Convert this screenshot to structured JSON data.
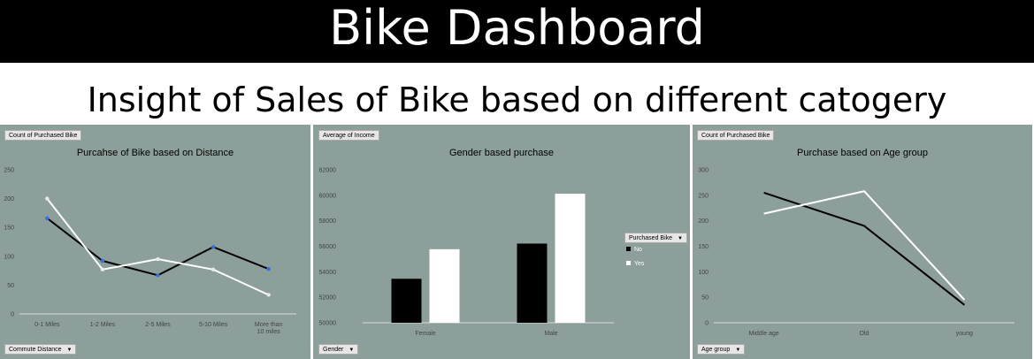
{
  "header": {
    "title": "Bike Dashboard",
    "subtitle": "Insight of Sales of Bike based on different catogery"
  },
  "colors": {
    "panel_bg": "#8c9f9b",
    "series_no": "#000000",
    "series_yes": "#ffffff",
    "marker": "#3a6fd8"
  },
  "chart_data": [
    {
      "type": "line",
      "title": "Purcahse of Bike based on Distance",
      "value_field": "Count of Purchased Bike",
      "axis_field": "Commute Distance",
      "categories": [
        "0-1 Miles",
        "1-2 Miles",
        "2-5 Miles",
        "5-10 Miles",
        "More than 10 miles"
      ],
      "ylim": [
        0,
        250
      ],
      "yticks": [
        0,
        50,
        100,
        150,
        200,
        250
      ],
      "series": [
        {
          "name": "No",
          "values": [
            166,
            92,
            67,
            116,
            78
          ]
        },
        {
          "name": "Yes",
          "values": [
            200,
            77,
            95,
            77,
            33
          ]
        }
      ]
    },
    {
      "type": "bar",
      "title": "Gender based purchase",
      "value_field": "Average of Income",
      "axis_field": "Gender",
      "categories": [
        "Female",
        "Male"
      ],
      "ylim": [
        50000,
        62000
      ],
      "yticks": [
        50000,
        52000,
        54000,
        56000,
        58000,
        60000,
        62000
      ],
      "series": [
        {
          "name": "No",
          "values": [
            53450,
            56210
          ]
        },
        {
          "name": "Yes",
          "values": [
            55770,
            60120
          ]
        }
      ],
      "legend": {
        "title": "Purchased Bike",
        "items": [
          "No",
          "Yes"
        ],
        "placement": "right"
      }
    },
    {
      "type": "line",
      "title": "Purchase based on Age group",
      "value_field": "Count of Purchased Bike",
      "axis_field": "Age group",
      "categories": [
        "Middle age",
        "Old",
        "young"
      ],
      "ylim": [
        0,
        300
      ],
      "yticks": [
        0,
        50,
        100,
        150,
        200,
        250,
        300
      ],
      "series": [
        {
          "name": "No",
          "values": [
            255,
            190,
            35
          ]
        },
        {
          "name": "Yes",
          "values": [
            214,
            258,
            45
          ]
        }
      ]
    }
  ]
}
